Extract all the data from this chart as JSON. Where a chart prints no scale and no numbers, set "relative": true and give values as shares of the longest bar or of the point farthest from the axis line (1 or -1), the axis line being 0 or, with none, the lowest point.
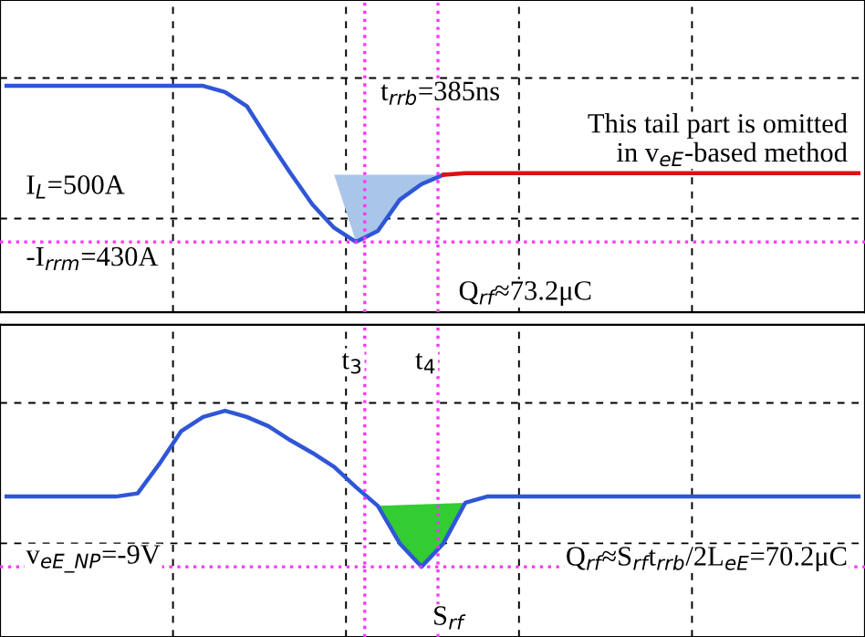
{
  "chart_data": [
    {
      "type": "line",
      "relative": true,
      "grid": true,
      "categories": [
        null,
        null,
        null,
        null,
        null,
        null,
        null,
        null,
        null,
        null,
        null,
        null,
        null,
        null,
        null,
        null,
        null,
        null,
        null,
        null,
        null,
        null,
        null,
        null,
        null,
        null,
        null,
        null,
        null,
        null,
        null,
        null,
        null,
        null,
        null,
        null,
        null,
        null,
        null,
        null
      ],
      "series": [
        {
          "type": "line",
          "color": "#2f56d6",
          "values": [
            1,
            1,
            1,
            1,
            1,
            1,
            1,
            1,
            1,
            1,
            0.96,
            0.87,
            0.65,
            0.44,
            0.24,
            0.09,
            0,
            0.07,
            0.27,
            0.37,
            0.43,
            null,
            null,
            null,
            null,
            null,
            null,
            null,
            null,
            null,
            null,
            null,
            null,
            null,
            null,
            null,
            null,
            null,
            null,
            null
          ]
        },
        {
          "type": "line",
          "color": "#e01010",
          "values": [
            null,
            null,
            null,
            null,
            null,
            null,
            null,
            null,
            null,
            null,
            null,
            null,
            null,
            null,
            null,
            null,
            null,
            null,
            null,
            null,
            0.43,
            0.44,
            0.44,
            0.44,
            0.44,
            0.44,
            0.44,
            0.44,
            0.44,
            0.44,
            0.44,
            0.44,
            0.44,
            0.44,
            0.44,
            0.44,
            0.44,
            0.44,
            0.44,
            0.44
          ]
        },
        {
          "type": "area",
          "color": "#a9c6e8",
          "values": [
            null,
            null,
            null,
            null,
            null,
            null,
            null,
            null,
            null,
            null,
            null,
            null,
            null,
            null,
            null,
            0.43,
            0,
            0.07,
            0.27,
            0.37,
            0.43,
            null,
            null,
            null,
            null,
            null,
            null,
            null,
            null,
            null,
            null,
            null,
            null,
            null,
            null,
            null,
            null,
            null,
            null,
            null
          ]
        }
      ],
      "ref_lines": [
        {
          "axis": "y",
          "value": 0,
          "color": "#ff33ff",
          "line_style": "dotted"
        }
      ],
      "annotations": [
        "I$_{L}$=500A",
        "-I$_{rrm}$=430A",
        "t$_{rrb}$=385ns",
        "This tail part is omitted\nin v$_{eE}$-based method",
        "Q$_{rf}$≈73.2μC"
      ]
    },
    {
      "type": "line",
      "relative": true,
      "grid": true,
      "categories": [
        null,
        null,
        null,
        null,
        null,
        null,
        null,
        null,
        null,
        null,
        null,
        null,
        null,
        null,
        null,
        null,
        null,
        null,
        null,
        null,
        null,
        null,
        null,
        null,
        null,
        null,
        null,
        null,
        null,
        null,
        null,
        null,
        null,
        null,
        null,
        null,
        null,
        null,
        null,
        null
      ],
      "series": [
        {
          "type": "line",
          "color": "#2f56d6",
          "values": [
            0.45,
            0.45,
            0.45,
            0.45,
            0.45,
            0.45,
            0.47,
            0.66,
            0.87,
            0.96,
            1,
            0.96,
            0.9,
            0.81,
            0.73,
            0.64,
            0.51,
            0.39,
            0.15,
            0,
            0.15,
            0.41,
            0.45,
            0.45,
            0.45,
            0.45,
            0.45,
            0.45,
            0.45,
            0.45,
            0.45,
            0.45,
            0.45,
            0.45,
            0.45,
            0.45,
            0.45,
            0.45,
            0.45,
            0.45
          ]
        },
        {
          "type": "area",
          "color": "#33cc33",
          "values": [
            null,
            null,
            null,
            null,
            null,
            null,
            null,
            null,
            null,
            null,
            null,
            null,
            null,
            null,
            null,
            null,
            null,
            0.39,
            0.15,
            0,
            0.15,
            0.41,
            null,
            null,
            null,
            null,
            null,
            null,
            null,
            null,
            null,
            null,
            null,
            null,
            null,
            null,
            null,
            null,
            null,
            null
          ]
        }
      ],
      "ref_lines": [
        {
          "axis": "y",
          "value": 0,
          "color": "#ff33ff",
          "line_style": "dotted"
        }
      ],
      "annotations": [
        "t$_{3}$",
        "t$_{4}$",
        "v$_{eE_NP}$=-9V",
        "S$_{rf}$",
        "Q$_{rf}$≈S$_{rf}$t$_{rrb}$/2L$_{eE}$=70.2μC"
      ]
    }
  ]
}
